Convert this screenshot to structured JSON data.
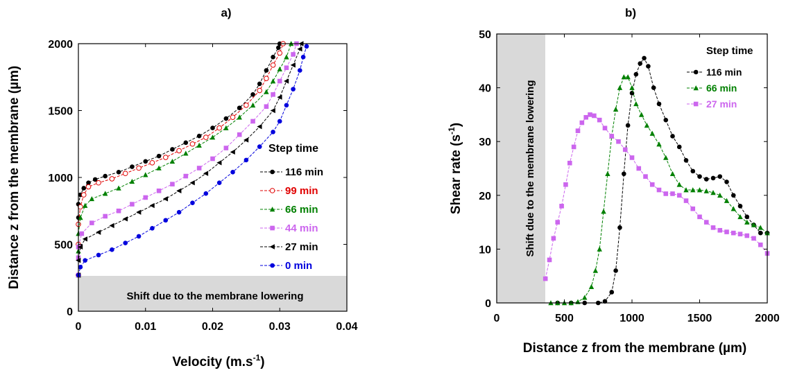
{
  "chart_data": [
    {
      "panel_label": "a)",
      "type": "line",
      "xlabel": "Velocity (m.s",
      "xlabel_sup": "-1",
      "xlabel_suffix": ")",
      "ylabel": "Distance z from the membrane (µm)",
      "xlim": [
        0,
        0.04
      ],
      "ylim": [
        0,
        2000
      ],
      "xticks": [
        "0",
        "0.01",
        "0.02",
        "0.03",
        "0.04"
      ],
      "yticks": [
        "0",
        "500",
        "1000",
        "1500",
        "2000"
      ],
      "shaded_region": {
        "y_range": [
          0,
          270
        ],
        "label": "Shift due to the membrane lowering"
      },
      "legend_title": "Step time",
      "legend_position": "right",
      "series": [
        {
          "name": "116 min",
          "color": "#000000",
          "marker": "circle",
          "points": [
            [
              0,
              270
            ],
            [
              0,
              500
            ],
            [
              0,
              700
            ],
            [
              0,
              800
            ],
            [
              0.0003,
              870
            ],
            [
              0.0008,
              920
            ],
            [
              0.0015,
              960
            ],
            [
              0.0025,
              985
            ],
            [
              0.004,
              1010
            ],
            [
              0.006,
              1040
            ],
            [
              0.008,
              1080
            ],
            [
              0.01,
              1120
            ],
            [
              0.012,
              1160
            ],
            [
              0.014,
              1210
            ],
            [
              0.016,
              1260
            ],
            [
              0.018,
              1310
            ],
            [
              0.02,
              1370
            ],
            [
              0.022,
              1440
            ],
            [
              0.024,
              1520
            ],
            [
              0.026,
              1620
            ],
            [
              0.027,
              1700
            ],
            [
              0.028,
              1800
            ],
            [
              0.029,
              1900
            ],
            [
              0.0298,
              1970
            ],
            [
              0.03,
              2000
            ]
          ]
        },
        {
          "name": "99 min",
          "color": "#e00000",
          "marker": "open-circle",
          "points": [
            [
              0,
              270
            ],
            [
              0,
              500
            ],
            [
              0,
              650
            ],
            [
              0.0003,
              780
            ],
            [
              0.0008,
              870
            ],
            [
              0.0015,
              930
            ],
            [
              0.003,
              960
            ],
            [
              0.005,
              990
            ],
            [
              0.007,
              1030
            ],
            [
              0.009,
              1070
            ],
            [
              0.011,
              1110
            ],
            [
              0.013,
              1150
            ],
            [
              0.015,
              1200
            ],
            [
              0.017,
              1250
            ],
            [
              0.019,
              1300
            ],
            [
              0.021,
              1370
            ],
            [
              0.023,
              1450
            ],
            [
              0.025,
              1540
            ],
            [
              0.027,
              1650
            ],
            [
              0.028,
              1740
            ],
            [
              0.029,
              1840
            ],
            [
              0.03,
              1930
            ],
            [
              0.0305,
              2000
            ]
          ]
        },
        {
          "name": "66 min",
          "color": "#008000",
          "marker": "triangle",
          "points": [
            [
              0,
              270
            ],
            [
              0,
              450
            ],
            [
              0,
              580
            ],
            [
              0.0003,
              700
            ],
            [
              0.001,
              790
            ],
            [
              0.002,
              840
            ],
            [
              0.004,
              880
            ],
            [
              0.006,
              920
            ],
            [
              0.008,
              970
            ],
            [
              0.01,
              1020
            ],
            [
              0.012,
              1070
            ],
            [
              0.014,
              1120
            ],
            [
              0.016,
              1180
            ],
            [
              0.018,
              1240
            ],
            [
              0.02,
              1300
            ],
            [
              0.022,
              1370
            ],
            [
              0.024,
              1450
            ],
            [
              0.026,
              1540
            ],
            [
              0.028,
              1640
            ],
            [
              0.029,
              1720
            ],
            [
              0.03,
              1810
            ],
            [
              0.031,
              1900
            ],
            [
              0.0317,
              2000
            ]
          ]
        },
        {
          "name": "44 min",
          "color": "#cc66ee",
          "marker": "square",
          "points": [
            [
              0,
              270
            ],
            [
              0,
              400
            ],
            [
              0,
              480
            ],
            [
              0.0005,
              580
            ],
            [
              0.002,
              660
            ],
            [
              0.004,
              710
            ],
            [
              0.006,
              750
            ],
            [
              0.008,
              800
            ],
            [
              0.01,
              850
            ],
            [
              0.012,
              900
            ],
            [
              0.014,
              950
            ],
            [
              0.016,
              1010
            ],
            [
              0.018,
              1070
            ],
            [
              0.02,
              1140
            ],
            [
              0.022,
              1220
            ],
            [
              0.024,
              1320
            ],
            [
              0.026,
              1420
            ],
            [
              0.028,
              1530
            ],
            [
              0.029,
              1620
            ],
            [
              0.03,
              1720
            ],
            [
              0.031,
              1820
            ],
            [
              0.032,
              1920
            ],
            [
              0.0325,
              2000
            ]
          ]
        },
        {
          "name": "27 min",
          "color": "#000000",
          "marker": "left-triangle",
          "points": [
            [
              0,
              270
            ],
            [
              0,
              380
            ],
            [
              0.0003,
              480
            ],
            [
              0.001,
              540
            ],
            [
              0.003,
              590
            ],
            [
              0.005,
              640
            ],
            [
              0.007,
              690
            ],
            [
              0.009,
              740
            ],
            [
              0.011,
              790
            ],
            [
              0.013,
              840
            ],
            [
              0.015,
              900
            ],
            [
              0.017,
              960
            ],
            [
              0.019,
              1030
            ],
            [
              0.021,
              1110
            ],
            [
              0.023,
              1190
            ],
            [
              0.025,
              1280
            ],
            [
              0.027,
              1380
            ],
            [
              0.029,
              1500
            ],
            [
              0.03,
              1600
            ],
            [
              0.031,
              1720
            ],
            [
              0.032,
              1840
            ],
            [
              0.033,
              1960
            ],
            [
              0.0332,
              2000
            ]
          ]
        },
        {
          "name": "0 min",
          "color": "#0000dd",
          "marker": "circle",
          "points": [
            [
              0,
              270
            ],
            [
              0.0003,
              330
            ],
            [
              0.001,
              380
            ],
            [
              0.003,
              420
            ],
            [
              0.005,
              460
            ],
            [
              0.007,
              510
            ],
            [
              0.009,
              560
            ],
            [
              0.011,
              620
            ],
            [
              0.013,
              680
            ],
            [
              0.015,
              740
            ],
            [
              0.017,
              810
            ],
            [
              0.019,
              880
            ],
            [
              0.021,
              960
            ],
            [
              0.023,
              1040
            ],
            [
              0.025,
              1130
            ],
            [
              0.027,
              1230
            ],
            [
              0.029,
              1340
            ],
            [
              0.03,
              1420
            ],
            [
              0.031,
              1540
            ],
            [
              0.032,
              1660
            ],
            [
              0.033,
              1800
            ],
            [
              0.0335,
              1900
            ],
            [
              0.034,
              1980
            ]
          ]
        }
      ]
    },
    {
      "panel_label": "b)",
      "type": "line",
      "xlabel": "Distance z from the membrane (µm)",
      "ylabel": "Shear rate (s",
      "ylabel_sup": "-1",
      "ylabel_suffix": ")",
      "xlim": [
        0,
        2000
      ],
      "ylim": [
        0,
        50
      ],
      "xticks": [
        "0",
        "500",
        "1000",
        "1500",
        "2000"
      ],
      "yticks": [
        "0",
        "10",
        "20",
        "30",
        "40",
        "50"
      ],
      "shaded_region": {
        "x_range": [
          0,
          360
        ],
        "label": "Shift due to the membrane lowering"
      },
      "legend_title": "Step time",
      "legend_position": "top-right",
      "series": [
        {
          "name": "116 min",
          "color": "#000000",
          "marker": "circle",
          "points": [
            [
              450,
              0
            ],
            [
              550,
              0
            ],
            [
              650,
              0
            ],
            [
              750,
              0
            ],
            [
              800,
              0.3
            ],
            [
              850,
              2
            ],
            [
              880,
              6
            ],
            [
              910,
              14
            ],
            [
              940,
              24
            ],
            [
              970,
              33
            ],
            [
              1000,
              39
            ],
            [
              1030,
              42.5
            ],
            [
              1060,
              44.5
            ],
            [
              1090,
              45.5
            ],
            [
              1120,
              44
            ],
            [
              1160,
              40
            ],
            [
              1200,
              37
            ],
            [
              1250,
              34
            ],
            [
              1300,
              31
            ],
            [
              1350,
              29
            ],
            [
              1400,
              26.5
            ],
            [
              1450,
              24.5
            ],
            [
              1500,
              23.5
            ],
            [
              1550,
              23
            ],
            [
              1600,
              23.2
            ],
            [
              1650,
              23.5
            ],
            [
              1700,
              22.5
            ],
            [
              1750,
              20
            ],
            [
              1800,
              18
            ],
            [
              1850,
              16
            ],
            [
              1900,
              14.5
            ],
            [
              1950,
              13
            ],
            [
              2000,
              13
            ]
          ]
        },
        {
          "name": "66 min",
          "color": "#008000",
          "marker": "triangle",
          "points": [
            [
              400,
              0
            ],
            [
              450,
              0
            ],
            [
              500,
              0
            ],
            [
              550,
              0
            ],
            [
              600,
              0.2
            ],
            [
              650,
              1
            ],
            [
              700,
              3
            ],
            [
              730,
              6
            ],
            [
              760,
              10
            ],
            [
              790,
              17
            ],
            [
              820,
              24
            ],
            [
              850,
              31
            ],
            [
              880,
              36
            ],
            [
              910,
              40
            ],
            [
              940,
              42
            ],
            [
              970,
              42
            ],
            [
              1000,
              40
            ],
            [
              1030,
              37
            ],
            [
              1070,
              35
            ],
            [
              1110,
              33
            ],
            [
              1150,
              31.5
            ],
            [
              1200,
              29.5
            ],
            [
              1250,
              27
            ],
            [
              1300,
              24
            ],
            [
              1350,
              22
            ],
            [
              1400,
              21
            ],
            [
              1450,
              21
            ],
            [
              1500,
              21
            ],
            [
              1550,
              20.8
            ],
            [
              1600,
              20.5
            ],
            [
              1650,
              20
            ],
            [
              1700,
              19
            ],
            [
              1750,
              17.5
            ],
            [
              1800,
              16
            ],
            [
              1850,
              15
            ],
            [
              1900,
              14.5
            ],
            [
              1950,
              14
            ],
            [
              2000,
              13
            ]
          ]
        },
        {
          "name": "27 min",
          "color": "#cc66ee",
          "marker": "square",
          "points": [
            [
              360,
              4.5
            ],
            [
              390,
              8
            ],
            [
              420,
              12
            ],
            [
              450,
              15
            ],
            [
              480,
              18
            ],
            [
              510,
              22
            ],
            [
              540,
              26
            ],
            [
              570,
              29
            ],
            [
              600,
              32
            ],
            [
              630,
              33.5
            ],
            [
              660,
              34.5
            ],
            [
              690,
              35
            ],
            [
              720,
              34.8
            ],
            [
              760,
              34
            ],
            [
              800,
              32.5
            ],
            [
              850,
              31
            ],
            [
              900,
              30
            ],
            [
              950,
              28.5
            ],
            [
              1000,
              27
            ],
            [
              1050,
              25
            ],
            [
              1100,
              23.5
            ],
            [
              1150,
              22
            ],
            [
              1200,
              21
            ],
            [
              1250,
              20.3
            ],
            [
              1300,
              20.3
            ],
            [
              1350,
              20
            ],
            [
              1400,
              19
            ],
            [
              1450,
              17.5
            ],
            [
              1500,
              16
            ],
            [
              1550,
              15
            ],
            [
              1600,
              14
            ],
            [
              1650,
              13.5
            ],
            [
              1700,
              13.2
            ],
            [
              1750,
              13
            ],
            [
              1800,
              12.8
            ],
            [
              1850,
              12.5
            ],
            [
              1900,
              12
            ],
            [
              1950,
              10.8
            ],
            [
              2000,
              9.2
            ]
          ]
        }
      ]
    }
  ]
}
